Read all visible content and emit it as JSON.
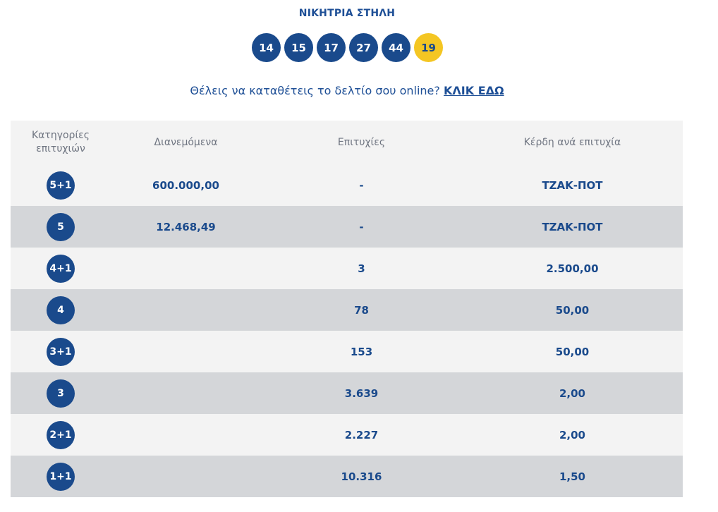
{
  "title": "ΝΙΚΗΤΡΙΑ ΣΤΗΛΗ",
  "winning_numbers": [
    "14",
    "15",
    "17",
    "27",
    "44"
  ],
  "joker_number": "19",
  "promo": {
    "text": "Θέλεις να καταθέτεις το δελτίο σου online?",
    "link_label": "ΚΛΙΚ ΕΔΩ"
  },
  "table": {
    "headers": {
      "category_line1": "Κατηγορίες",
      "category_line2": "επιτυχιών",
      "distributed": "Διανεμόμενα",
      "winners": "Επιτυχίες",
      "prize": "Κέρδη ανά επιτυχία"
    },
    "rows": [
      {
        "category": "5+1",
        "distributed": "600.000,00",
        "winners": "-",
        "prize": "ΤΖΑΚ-ΠΟΤ"
      },
      {
        "category": "5",
        "distributed": "12.468,49",
        "winners": "-",
        "prize": "ΤΖΑΚ-ΠΟΤ"
      },
      {
        "category": "4+1",
        "distributed": "",
        "winners": "3",
        "prize": "2.500,00"
      },
      {
        "category": "4",
        "distributed": "",
        "winners": "78",
        "prize": "50,00"
      },
      {
        "category": "3+1",
        "distributed": "",
        "winners": "153",
        "prize": "50,00"
      },
      {
        "category": "3",
        "distributed": "",
        "winners": "3.639",
        "prize": "2,00"
      },
      {
        "category": "2+1",
        "distributed": "",
        "winners": "2.227",
        "prize": "2,00"
      },
      {
        "category": "1+1",
        "distributed": "",
        "winners": "10.316",
        "prize": "1,50"
      }
    ]
  }
}
